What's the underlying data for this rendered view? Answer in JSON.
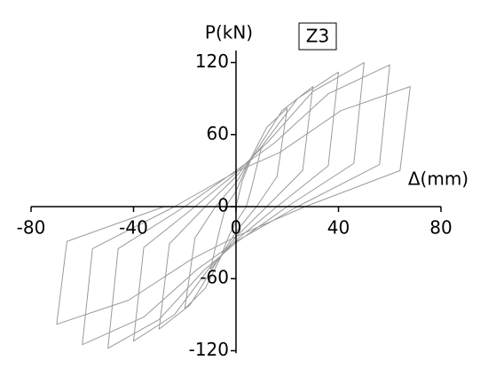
{
  "chart_data": {
    "type": "line",
    "x_label": "Δ(mm)",
    "y_label": "P(kN)",
    "annotation": "Z3",
    "color": "#9a9a9a",
    "x": [
      0,
      2.5,
      6,
      10,
      6,
      4,
      0,
      -2.5,
      -6,
      -10,
      -6,
      -4,
      0,
      5,
      12,
      20,
      16,
      8,
      0,
      -5,
      -12,
      -20,
      -16,
      -8,
      0,
      7.5,
      18,
      30,
      26,
      12,
      0,
      -7.5,
      -18,
      -30,
      -26,
      -12,
      0,
      10,
      24,
      40,
      36,
      16,
      0,
      -10,
      -24,
      -40,
      -36,
      -16,
      0,
      12.5,
      30,
      50,
      46,
      20,
      0,
      -12.5,
      -30,
      -50,
      -46,
      -20,
      0,
      15,
      36,
      60,
      56,
      24,
      0,
      -15,
      -36,
      -60,
      -56,
      -24,
      0,
      17,
      41,
      68,
      64,
      27,
      0,
      -17.5,
      -42,
      -70,
      -66,
      -28
    ],
    "y": [
      0,
      22,
      40,
      50,
      15,
      0,
      -13,
      -23,
      -42,
      -52,
      -16,
      0,
      13,
      37,
      66,
      82,
      25,
      0,
      -21,
      -38,
      -68,
      -85,
      -26,
      0,
      20,
      45,
      80,
      100,
      30,
      0,
      -25,
      -46,
      -82,
      -102,
      -31,
      0,
      25,
      50,
      90,
      112,
      34,
      0,
      -28,
      -50,
      -90,
      -112,
      -34,
      0,
      28,
      54,
      96,
      120,
      36,
      0,
      -30,
      -53,
      -94,
      -118,
      -35,
      0,
      30,
      53,
      94,
      118,
      35,
      0,
      -29,
      -52,
      -92,
      -115,
      -35,
      0,
      29,
      45,
      80,
      100,
      30,
      0,
      -25,
      -44,
      -78,
      -98,
      -29,
      0
    ],
    "xlim": [
      -80,
      80
    ],
    "ylim": [
      -122,
      130
    ],
    "xticks": [
      -80,
      -40,
      0,
      40,
      80
    ],
    "yticks": [
      -120,
      -60,
      0,
      60,
      120
    ]
  }
}
